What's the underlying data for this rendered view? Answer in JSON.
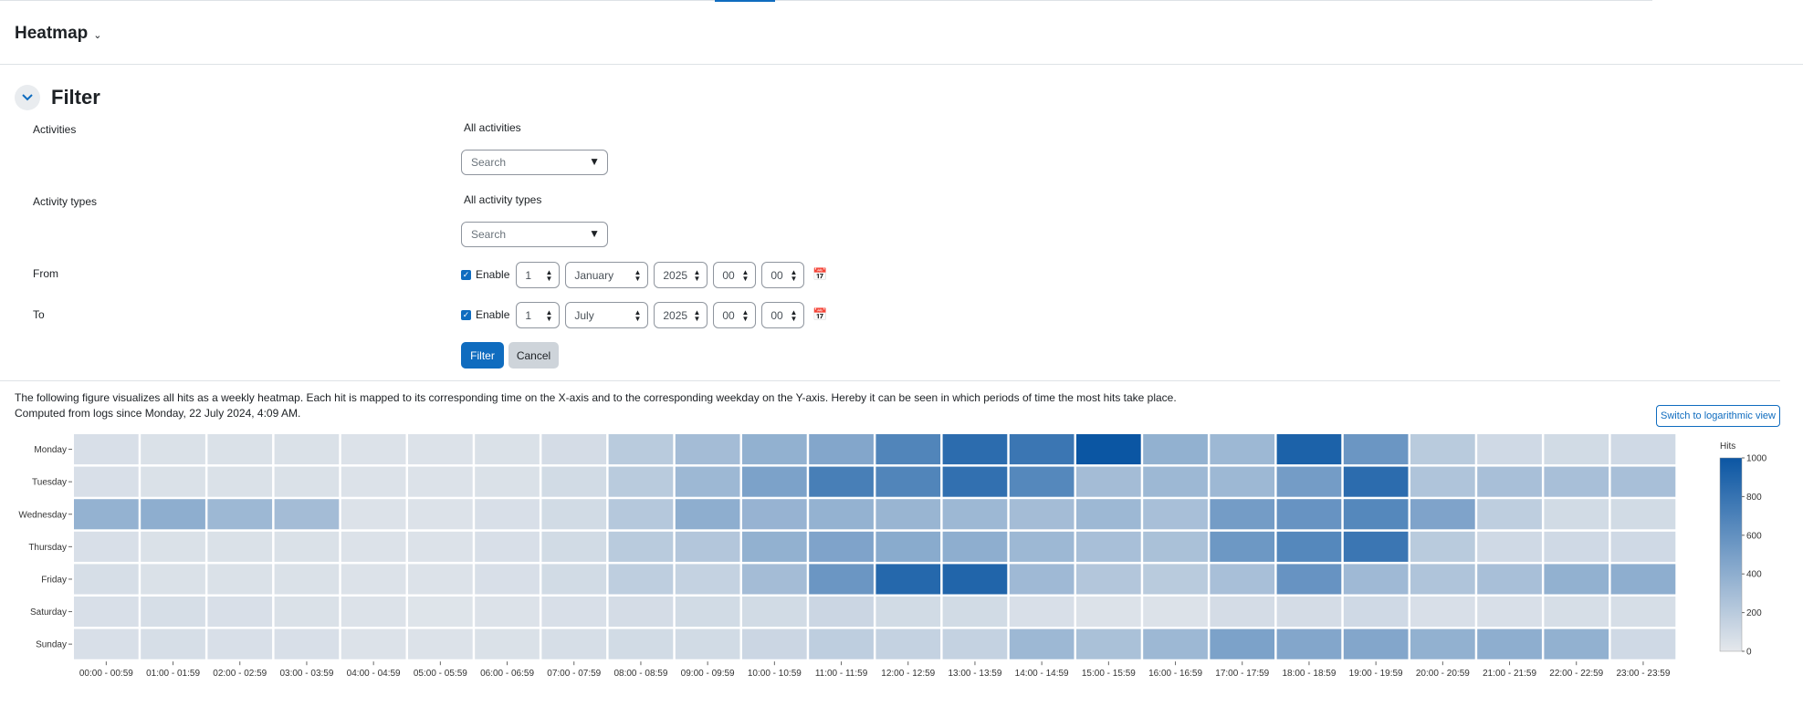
{
  "header": {
    "title": "Heatmap",
    "dropdown_icon": "chevron-down-icon"
  },
  "filter": {
    "title": "Filter",
    "activities_label": "Activities",
    "activities_value": "All activities",
    "activities_search": "Search",
    "activity_types_label": "Activity types",
    "activity_types_value": "All activity types",
    "activity_types_search": "Search",
    "from_label": "From",
    "to_label": "To",
    "enable_label": "Enable",
    "from": {
      "day": "1",
      "month": "January",
      "year": "2025",
      "hour": "00",
      "minute": "00"
    },
    "to": {
      "day": "1",
      "month": "July",
      "year": "2025",
      "hour": "00",
      "minute": "00"
    },
    "filter_button": "Filter",
    "cancel_button": "Cancel"
  },
  "description": "The following figure visualizes all hits as a weekly heatmap. Each hit is mapped to its corresponding time on the X-axis and to the corresponding weekday on the Y-axis. Hereby it can be seen in which periods of time the most hits take place.",
  "computed_text": "Computed from logs since Monday, 22 July 2024, 4:09 AM.",
  "log_button": "Switch to logarithmic view",
  "colors": {
    "accent": "#0f6cbf",
    "heat_low": "#e5e8ec",
    "heat_high": "#0b56a3"
  },
  "chart_data": {
    "type": "heatmap",
    "x_categories": [
      "00:00 - 00:59",
      "01:00 - 01:59",
      "02:00 - 02:59",
      "03:00 - 03:59",
      "04:00 - 04:59",
      "05:00 - 05:59",
      "06:00 - 06:59",
      "07:00 - 07:59",
      "08:00 - 08:59",
      "09:00 - 09:59",
      "10:00 - 10:59",
      "11:00 - 11:59",
      "12:00 - 12:59",
      "13:00 - 13:59",
      "14:00 - 14:59",
      "15:00 - 15:59",
      "16:00 - 16:59",
      "17:00 - 17:59",
      "18:00 - 18:59",
      "19:00 - 19:59",
      "20:00 - 20:59",
      "21:00 - 21:59",
      "22:00 - 22:59",
      "23:00 - 23:59"
    ],
    "y_categories": [
      "Monday",
      "Tuesday",
      "Wednesday",
      "Thursday",
      "Friday",
      "Saturday",
      "Sunday"
    ],
    "values": [
      [
        60,
        50,
        50,
        50,
        40,
        40,
        50,
        80,
        200,
        300,
        380,
        450,
        680,
        850,
        780,
        1000,
        380,
        330,
        920,
        560,
        200,
        100,
        90,
        100
      ],
      [
        60,
        50,
        50,
        50,
        40,
        40,
        50,
        90,
        200,
        330,
        480,
        720,
        680,
        820,
        660,
        300,
        330,
        330,
        520,
        850,
        250,
        280,
        280,
        280
      ],
      [
        370,
        400,
        330,
        300,
        40,
        40,
        60,
        90,
        220,
        400,
        360,
        370,
        350,
        330,
        300,
        330,
        280,
        520,
        580,
        660,
        470,
        180,
        90,
        90
      ],
      [
        60,
        50,
        50,
        50,
        40,
        40,
        60,
        90,
        200,
        230,
        380,
        470,
        420,
        400,
        330,
        280,
        270,
        550,
        660,
        780,
        200,
        100,
        100,
        100
      ],
      [
        70,
        50,
        50,
        50,
        40,
        40,
        60,
        90,
        180,
        150,
        300,
        560,
        880,
        900,
        320,
        230,
        200,
        280,
        580,
        320,
        250,
        280,
        380,
        400
      ],
      [
        60,
        70,
        60,
        50,
        40,
        30,
        40,
        60,
        80,
        90,
        90,
        120,
        90,
        90,
        60,
        40,
        40,
        80,
        80,
        100,
        60,
        60,
        70,
        70
      ],
      [
        60,
        70,
        60,
        60,
        40,
        40,
        50,
        70,
        90,
        90,
        120,
        180,
        150,
        150,
        330,
        270,
        330,
        480,
        450,
        450,
        380,
        400,
        380,
        100
      ]
    ],
    "colorbar": {
      "title": "Hits",
      "range": [
        0,
        1000
      ],
      "ticks": [
        0,
        200,
        400,
        600,
        800,
        1000
      ]
    }
  }
}
